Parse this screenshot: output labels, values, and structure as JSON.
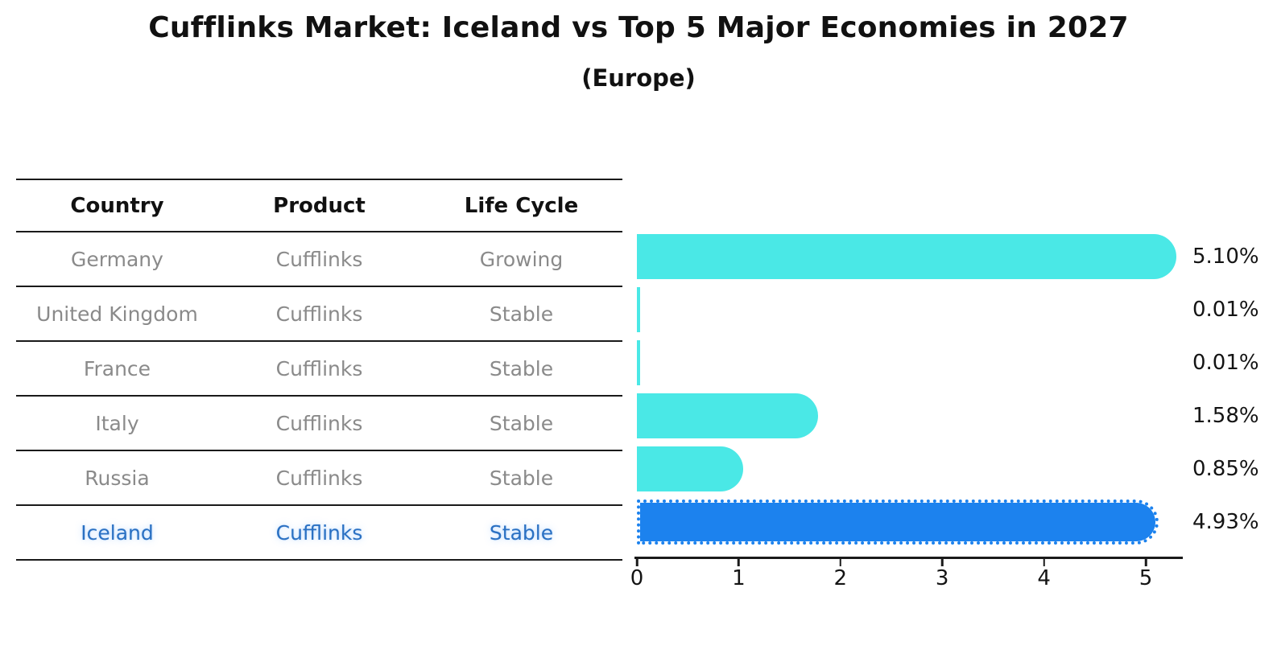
{
  "title": "Cufflinks Market: Iceland vs Top 5 Major Economies in 2027",
  "subtitle": "(Europe)",
  "table": {
    "headers": [
      "Country",
      "Product",
      "Life Cycle"
    ],
    "rows": [
      {
        "country": "Germany",
        "product": "Cufflinks",
        "life_cycle": "Growing",
        "highlight": false
      },
      {
        "country": "United Kingdom",
        "product": "Cufflinks",
        "life_cycle": "Stable",
        "highlight": false
      },
      {
        "country": "France",
        "product": "Cufflinks",
        "life_cycle": "Stable",
        "highlight": false
      },
      {
        "country": "Italy",
        "product": "Cufflinks",
        "life_cycle": "Stable",
        "highlight": false
      },
      {
        "country": "Russia",
        "product": "Cufflinks",
        "life_cycle": "Stable",
        "highlight": false
      },
      {
        "country": "Iceland",
        "product": "Cufflinks",
        "life_cycle": "Stable",
        "highlight": true
      }
    ]
  },
  "chart_data": {
    "type": "bar",
    "orientation": "horizontal",
    "title": "Cufflinks Market: Iceland vs Top 5 Major Economies in 2027 (Europe)",
    "categories": [
      "Germany",
      "United Kingdom",
      "France",
      "Italy",
      "Russia",
      "Iceland"
    ],
    "values": [
      5.1,
      0.01,
      0.01,
      1.58,
      0.85,
      4.93
    ],
    "labels": [
      "5.10%",
      "0.01%",
      "0.01%",
      "1.58%",
      "0.85%",
      "4.93%"
    ],
    "x_ticks": [
      0,
      1,
      2,
      3,
      4,
      5
    ],
    "xlim": [
      0,
      5.36
    ],
    "grid": false,
    "bar_color": "#4AE8E6",
    "highlight_color": "#1C82EE",
    "highlight_index": 5,
    "text_color_muted": "#8a8a8a",
    "highlight_text_color": "#2a70c2"
  }
}
